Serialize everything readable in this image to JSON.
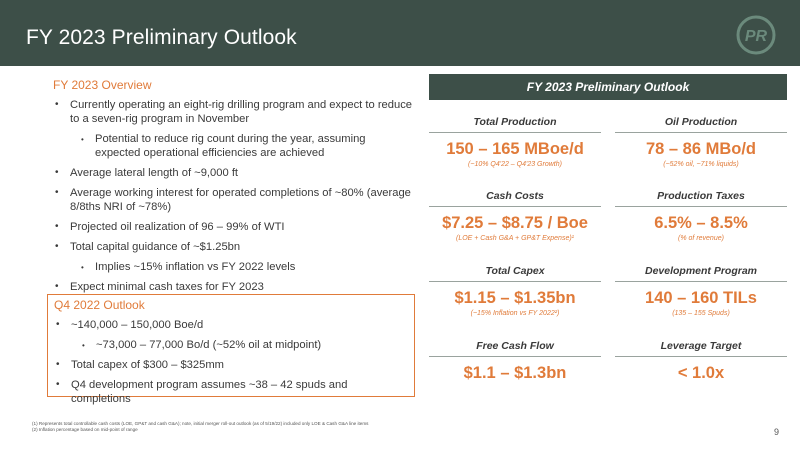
{
  "header": {
    "title": "FY 2023 Preliminary Outlook",
    "logo_text": "PR"
  },
  "overview": {
    "heading": "FY 2023 Overview",
    "items": [
      {
        "text": "Currently operating an eight-rig drilling program and expect to reduce to a seven-rig program in November",
        "level": 1
      },
      {
        "text": "Potential to reduce rig count during the year, assuming expected operational efficiencies are achieved",
        "level": 2
      },
      {
        "text": "Average lateral length of ~9,000 ft",
        "level": 1
      },
      {
        "text": "Average working interest for operated completions of ~80% (average 8/8ths NRI of ~78%)",
        "level": 1
      },
      {
        "text": "Projected oil realization of 96 – 99% of WTI",
        "level": 1
      },
      {
        "text": "Total capital guidance of ~$1.25bn",
        "level": 1
      },
      {
        "text": "Implies ~15% inflation vs FY 2022 levels",
        "level": 2
      },
      {
        "text": "Expect minimal cash taxes for FY 2023",
        "level": 1
      }
    ]
  },
  "q4": {
    "heading": "Q4 2022 Outlook",
    "items": [
      {
        "text": "~140,000 – 150,000 Boe/d",
        "level": 1
      },
      {
        "text": "~73,000 – 77,000 Bo/d (~52% oil at midpoint)",
        "level": 2
      },
      {
        "text": "Total capex of $300 – $325mm",
        "level": 1
      },
      {
        "text": "Q4 development program assumes ~38 – 42 spuds and completions",
        "level": 1
      }
    ]
  },
  "outlook": {
    "heading": "FY 2023 Preliminary Outlook",
    "cells": [
      {
        "label": "Total Production",
        "value": "150 – 165 MBoe/d",
        "note": "(~10% Q4'22 – Q4'23 Growth)"
      },
      {
        "label": "Oil Production",
        "value": "78 – 86 MBo/d",
        "note": "(~52% oil, ~71% liquids)"
      },
      {
        "label": "Cash Costs",
        "value": "$7.25 – $8.75 / Boe",
        "note": "(LOE + Cash G&A + GP&T Expense)¹"
      },
      {
        "label": "Production Taxes",
        "value": "6.5% – 8.5%",
        "note": "(% of revenue)"
      },
      {
        "label": "Total Capex",
        "value": "$1.15 – $1.35bn",
        "note": "(~15% Inflation vs FY 2022²)"
      },
      {
        "label": "Development Program",
        "value": "140 – 160 TILs",
        "note": "(135 – 155 Spuds)"
      },
      {
        "label": "Free Cash Flow",
        "value": "$1.1 – $1.3bn",
        "note": ""
      },
      {
        "label": "Leverage Target",
        "value": "< 1.0x",
        "note": ""
      }
    ]
  },
  "footnotes": [
    "(1)   Represents total controllable cash costs (LOE, GP&T and cash G&A); note, initial merger roll-out outlook (as of 5/19/22) included only LOE & Cash G&A line items",
    "(2)   Inflation percentage based on mid-point of range"
  ],
  "page_number": "9",
  "colors": {
    "header_bg": "#3d4f48",
    "accent": "#e07b3a",
    "text": "#3a3a3a"
  }
}
